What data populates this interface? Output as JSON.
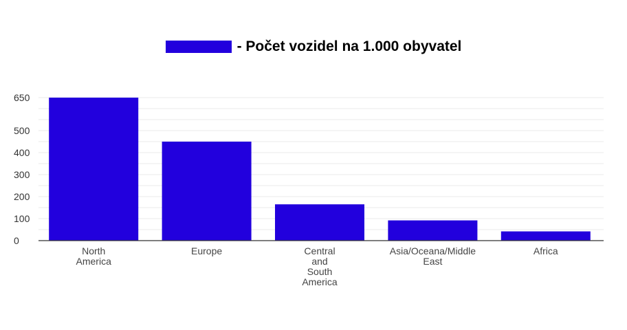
{
  "chart_data": {
    "type": "bar",
    "legend": {
      "label": "- Počet vozidel na 1.000 obyvatel",
      "placement": "top-center"
    },
    "categories": [
      "North America",
      "Europe",
      "Central and South America",
      "Asia/Oceana/Middle East",
      "Africa"
    ],
    "category_labels": [
      [
        "North",
        "America"
      ],
      [
        "Europe"
      ],
      [
        "Central",
        "and",
        "South",
        "America"
      ],
      [
        "Asia/Oceana/Middle",
        "East"
      ],
      [
        "Africa"
      ]
    ],
    "values": [
      650,
      450,
      165,
      92,
      42
    ],
    "y_ticks": [
      0,
      100,
      200,
      300,
      400,
      500,
      650
    ],
    "ylim": [
      0,
      650
    ],
    "grid": true,
    "bar_color": "#2200dd",
    "grid_color": "#e8e8e8",
    "axis_color": "#333333"
  }
}
